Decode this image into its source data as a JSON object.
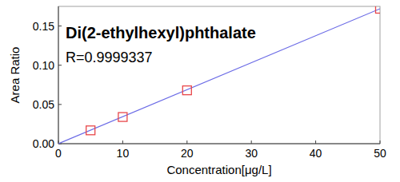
{
  "chart_data": {
    "type": "scatter",
    "title": "Di(2-ethylhexyl)phthalate",
    "annotations": [
      "R=0.9999337"
    ],
    "x_label": "Concentration[μg/L]",
    "y_label": "Area Ratio",
    "x": [
      5,
      10,
      20,
      50
    ],
    "series": [
      {
        "type": "scatter",
        "marker": "square",
        "color": "#e8474a",
        "values": [
          0.017,
          0.034,
          0.068,
          0.172
        ]
      },
      {
        "type": "line",
        "line_style": "solid",
        "color": "#6b6be6",
        "x": [
          0,
          50
        ],
        "values": [
          0,
          0.172
        ]
      }
    ],
    "xlim": [
      0,
      50
    ],
    "xticks": [
      0,
      10,
      20,
      30,
      40,
      50
    ],
    "ylim": [
      0,
      0.175
    ],
    "yticks": [
      {
        "value": 0,
        "label": "0.00"
      },
      {
        "value": 0.05,
        "label": "0.05"
      },
      {
        "value": 0.1,
        "label": "0.10"
      },
      {
        "value": 0.15,
        "label": "0.15"
      }
    ],
    "grid": false
  }
}
